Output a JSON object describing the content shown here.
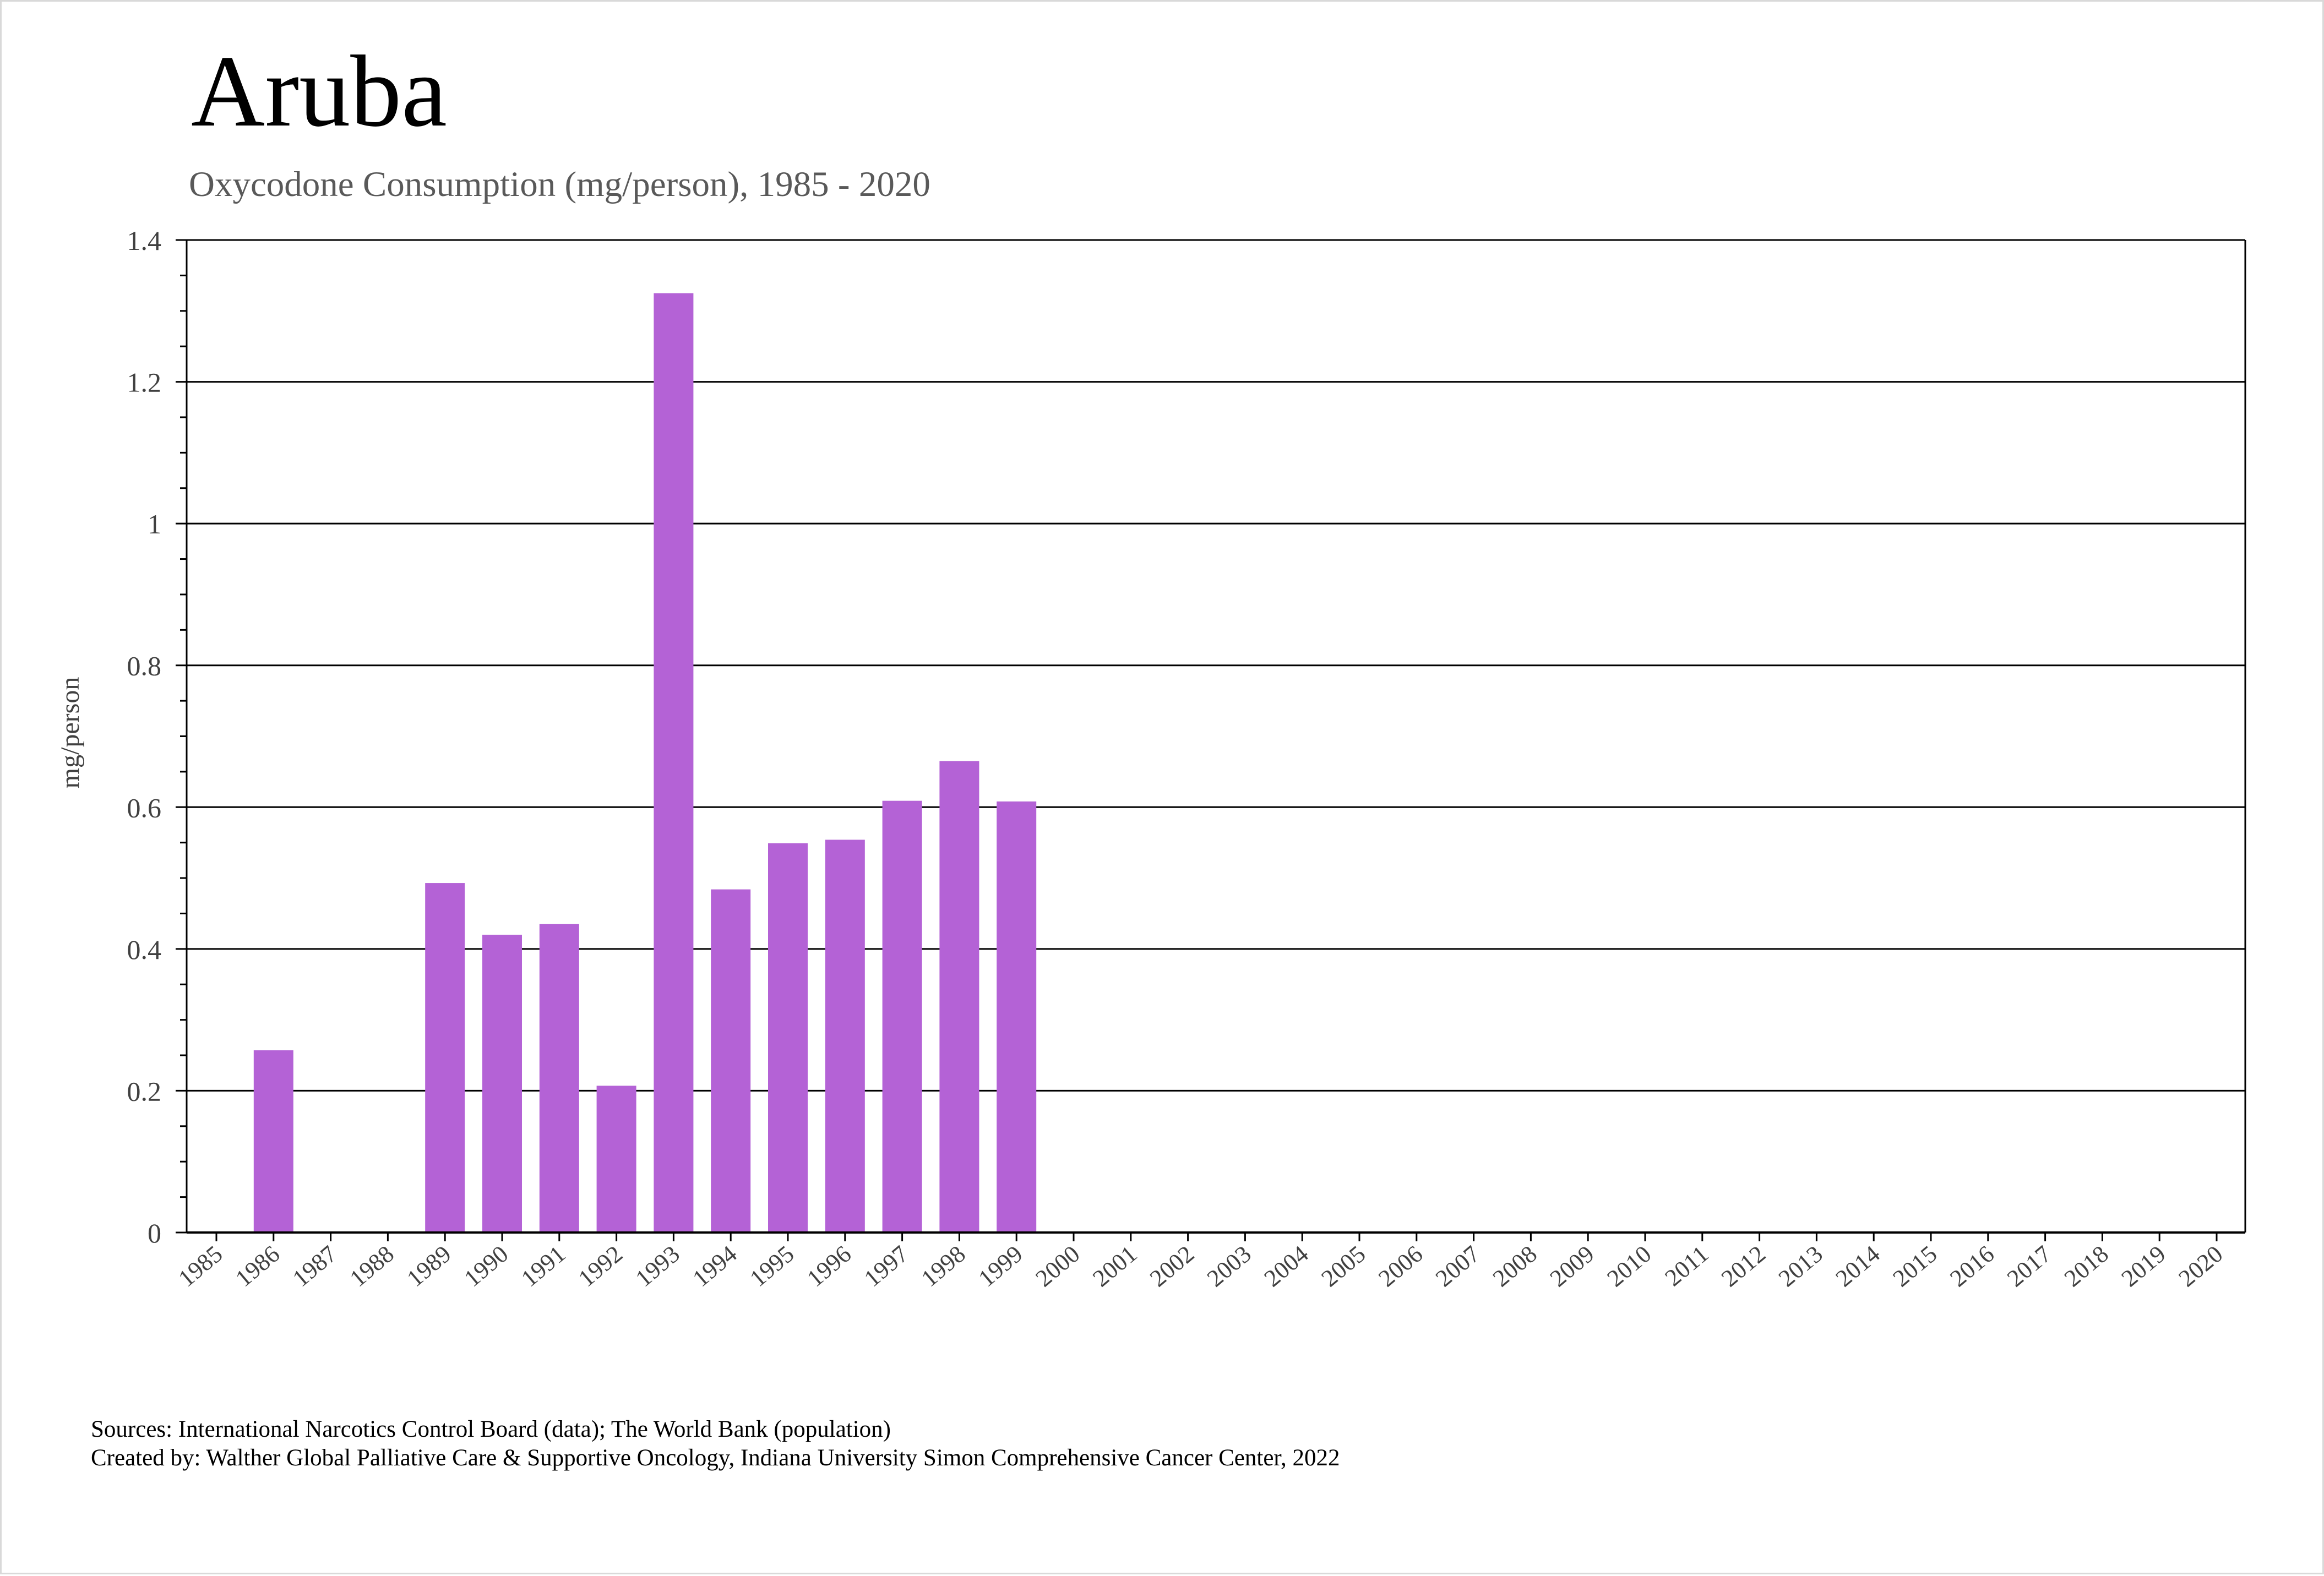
{
  "title": "Aruba",
  "subtitle": "Oxycodone Consumption (mg/person), 1985 - 2020",
  "footer": {
    "sources": "Sources: International Narcotics Control Board (data); The World Bank (population)",
    "created_by": "Created by: Walther Global Palliative Care & Supportive Oncology, Indiana University Simon Comprehensive Cancer Center, 2022"
  },
  "colors": {
    "bar": "#b462d6",
    "grid": "#000000",
    "tick_text": "#404040"
  },
  "chart_data": {
    "type": "bar",
    "ylabel": "mg/person",
    "xlabel": "",
    "ylim": [
      0,
      1.4
    ],
    "yticks": [
      "0",
      "0.2",
      "0.4",
      "0.6",
      "0.8",
      "1",
      "1.2",
      "1.4"
    ],
    "grid": true,
    "categories": [
      "1985",
      "1986",
      "1987",
      "1988",
      "1989",
      "1990",
      "1991",
      "1992",
      "1993",
      "1994",
      "1995",
      "1996",
      "1997",
      "1998",
      "1999",
      "2000",
      "2001",
      "2002",
      "2003",
      "2004",
      "2005",
      "2006",
      "2007",
      "2008",
      "2009",
      "2010",
      "2011",
      "2012",
      "2013",
      "2014",
      "2015",
      "2016",
      "2017",
      "2018",
      "2019",
      "2020"
    ],
    "values": [
      null,
      0.257,
      null,
      null,
      0.493,
      0.42,
      0.435,
      0.207,
      1.325,
      0.484,
      0.549,
      0.554,
      0.609,
      0.665,
      0.608,
      null,
      null,
      null,
      null,
      null,
      null,
      null,
      null,
      null,
      null,
      null,
      null,
      null,
      null,
      null,
      null,
      null,
      null,
      null,
      null,
      null
    ]
  }
}
